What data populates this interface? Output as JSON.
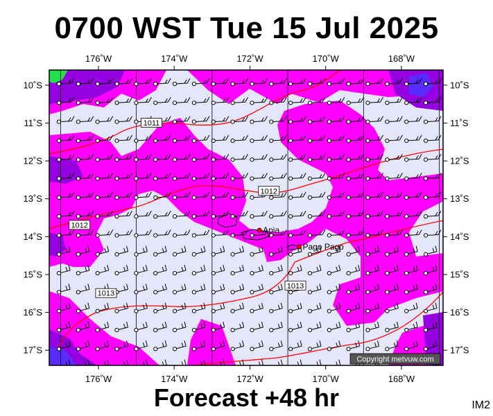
{
  "title": "0700 WST Tue 15 Jul 2025",
  "footer": "Forecast +48 hr",
  "panel_id": "IM2",
  "copyright": "Copyright metvuw.com",
  "map": {
    "lon_range": [
      -177.3,
      -166.9
    ],
    "lat_range": [
      -17.4,
      -9.6
    ],
    "lon_ticks": [
      {
        "value": -176,
        "label": "176˚W"
      },
      {
        "value": -174,
        "label": "174˚W"
      },
      {
        "value": -172,
        "label": "172˚W"
      },
      {
        "value": -170,
        "label": "170˚W"
      },
      {
        "value": -168,
        "label": "168˚W"
      }
    ],
    "lat_ticks": [
      {
        "value": -10,
        "label": "10˚S"
      },
      {
        "value": -11,
        "label": "11˚S"
      },
      {
        "value": -12,
        "label": "12˚S"
      },
      {
        "value": -13,
        "label": "13˚S"
      },
      {
        "value": -14,
        "label": "14˚S"
      },
      {
        "value": -15,
        "label": "15˚S"
      },
      {
        "value": -16,
        "label": "16˚S"
      },
      {
        "value": -17,
        "label": "17˚S"
      }
    ],
    "colors": {
      "background": "#e6e6fa",
      "moderate": "#ff00ff",
      "strong": "#9400e0",
      "strongest": "#5a2bff",
      "green": "#22e04a",
      "isobar": "#ff0000",
      "barb": "#000000"
    },
    "isobars": [
      {
        "label": "1011",
        "lon": -174.6,
        "lat": -11.0
      },
      {
        "label": "1012",
        "lon": -171.5,
        "lat": -12.8
      },
      {
        "label": "1012",
        "lon": -176.5,
        "lat": -13.7
      },
      {
        "label": "1013",
        "lon": -175.8,
        "lat": -15.5
      },
      {
        "label": "1013",
        "lon": -170.8,
        "lat": -15.3
      }
    ],
    "places": [
      {
        "name": "Apia",
        "lon": -171.75,
        "lat": -13.83
      },
      {
        "name": "Pago Pago",
        "lon": -170.7,
        "lat": -14.27
      }
    ]
  }
}
